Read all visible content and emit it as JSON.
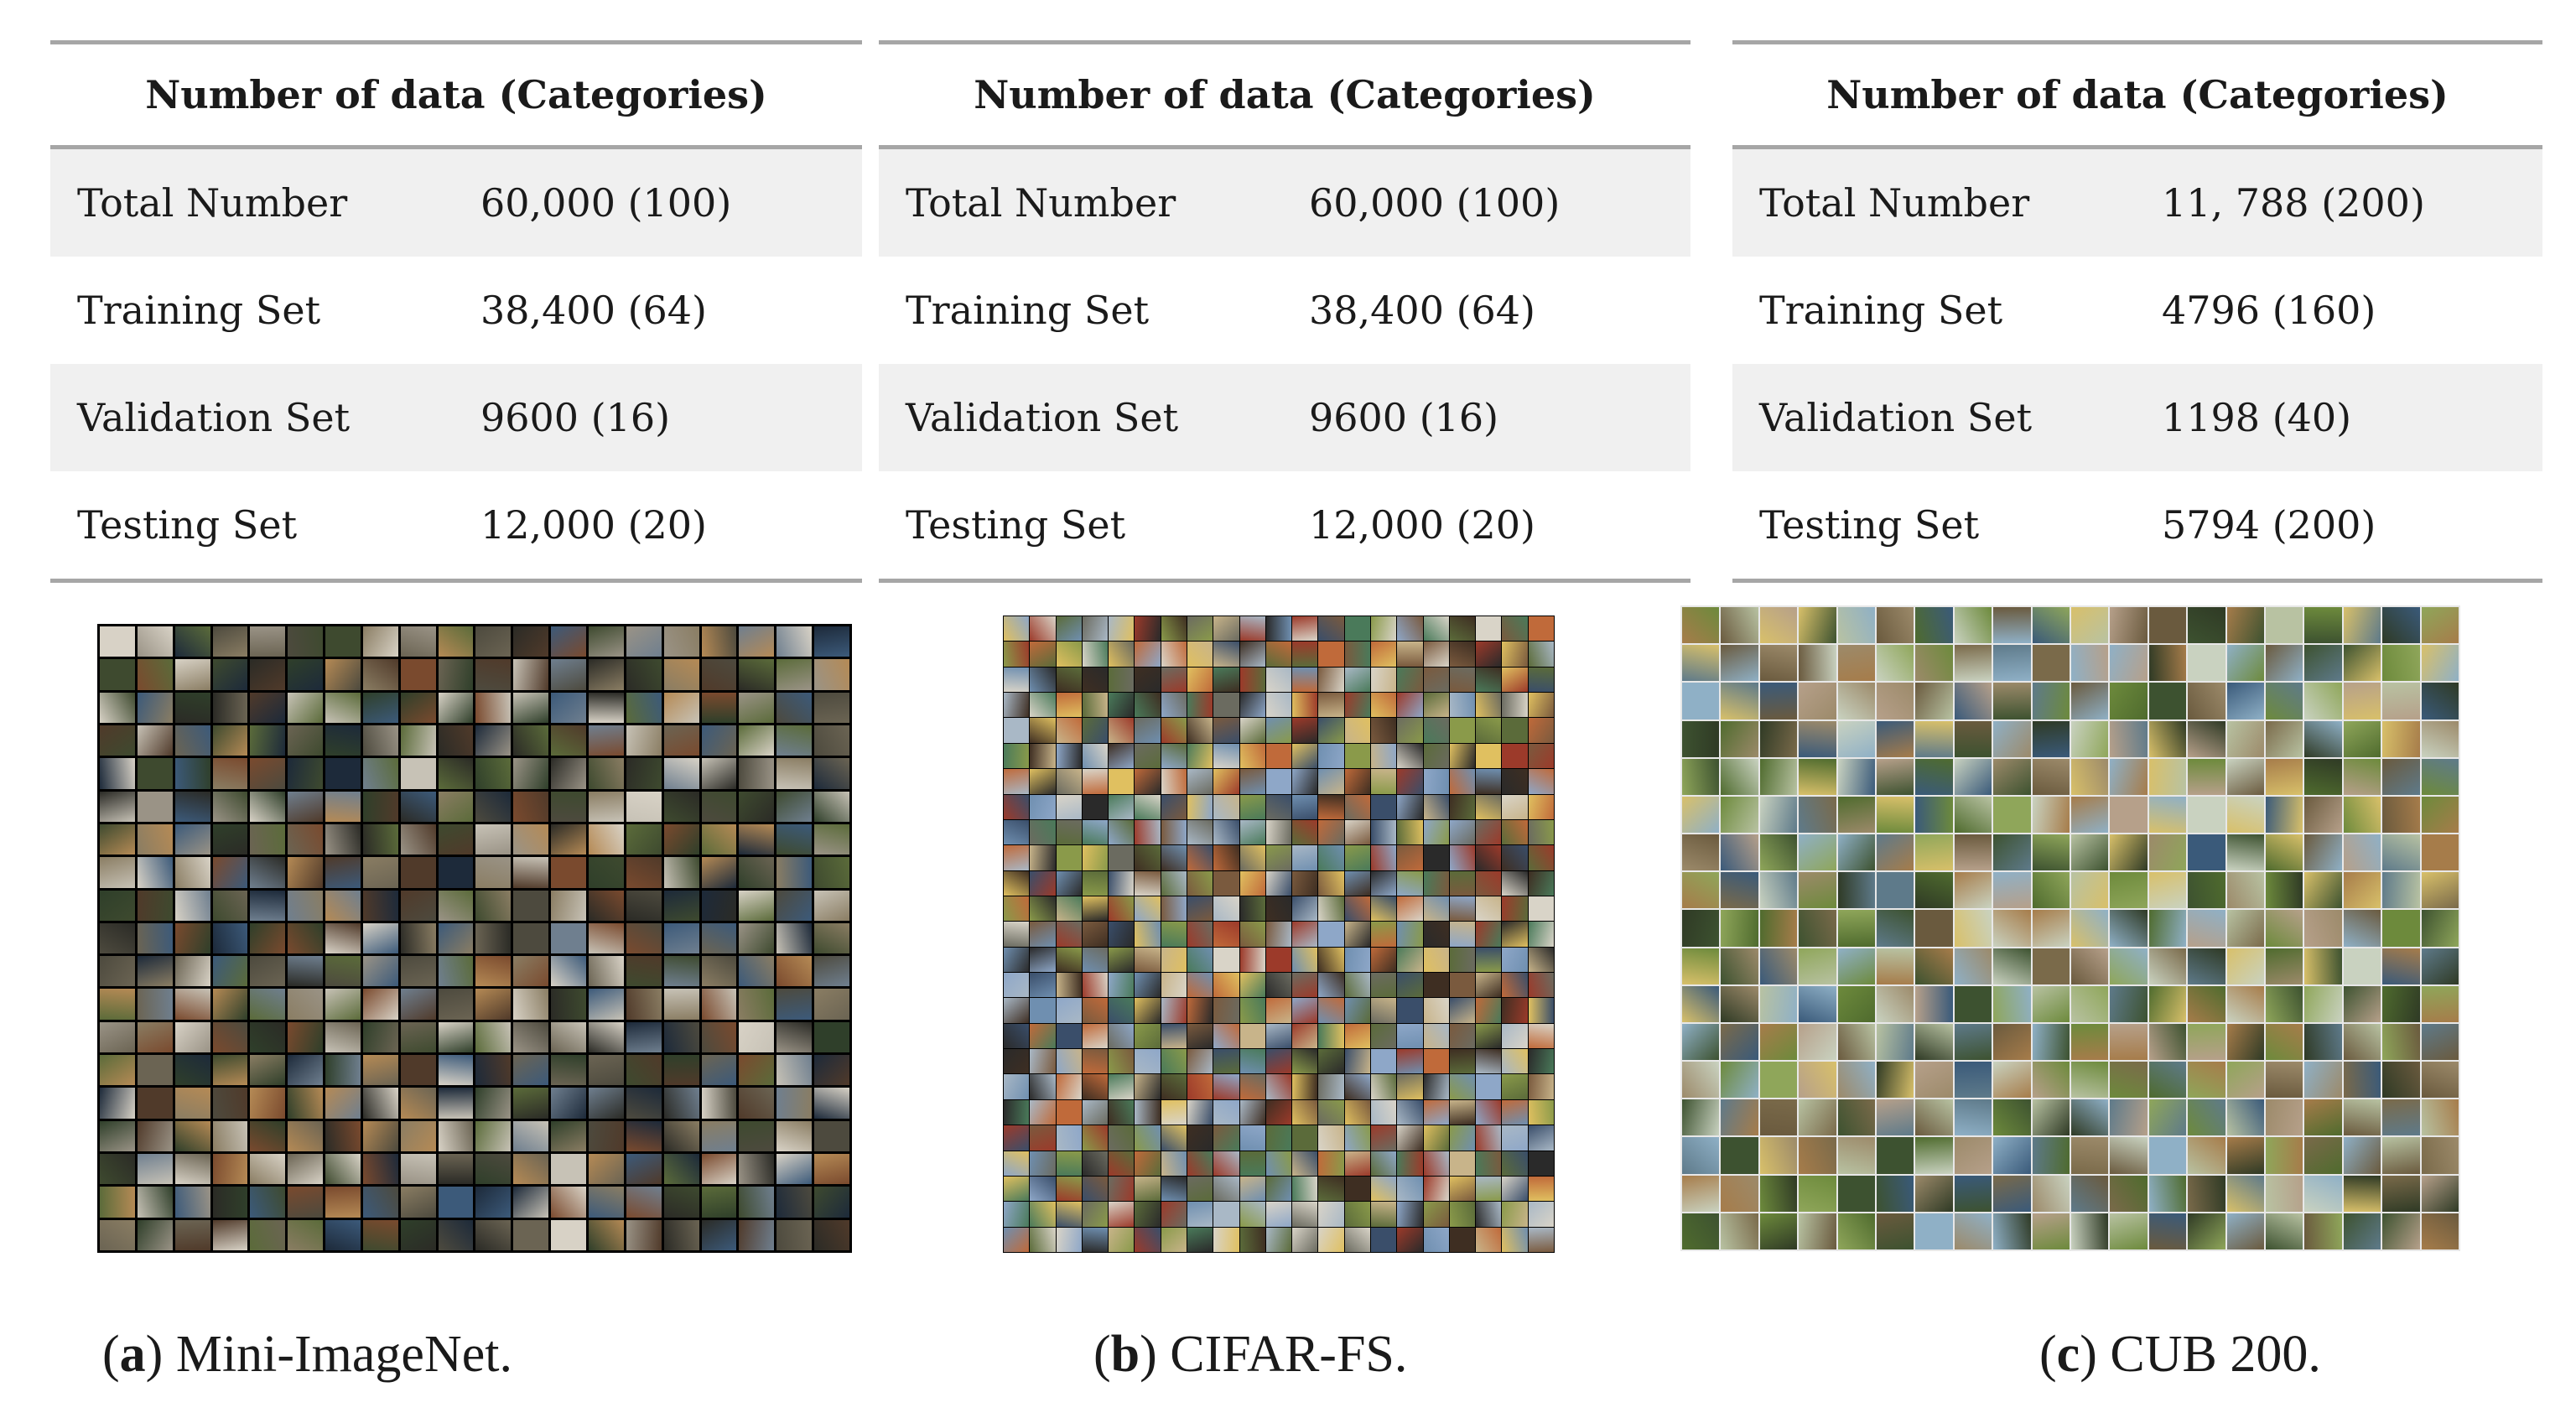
{
  "panels": [
    {
      "header": "Number of data (Categories)",
      "rows": [
        {
          "label": "Total Number",
          "value": "60,000 (100)"
        },
        {
          "label": "Training Set",
          "value": "38,400 (64)"
        },
        {
          "label": "Validation Set",
          "value": "9600 (16)"
        },
        {
          "label": "Testing Set",
          "value": "12,000 (20)"
        }
      ],
      "caption_letter": "a",
      "caption_text": " Mini-ImageNet."
    },
    {
      "header": "Number of data (Categories)",
      "rows": [
        {
          "label": "Total Number",
          "value": "60,000 (100)"
        },
        {
          "label": "Training Set",
          "value": "38,400 (64)"
        },
        {
          "label": "Validation Set",
          "value": "9600 (16)"
        },
        {
          "label": "Testing Set",
          "value": "12,000 (20)"
        }
      ],
      "caption_letter": "b",
      "caption_text": " CIFAR-FS."
    },
    {
      "header": "Number of data (Categories)",
      "rows": [
        {
          "label": "Total Number",
          "value": "11, 788 (200)"
        },
        {
          "label": "Training Set",
          "value": "4796 (160)"
        },
        {
          "label": "Validation Set",
          "value": "1198 (40)"
        },
        {
          "label": "Testing Set",
          "value": "5794 (200)"
        }
      ],
      "caption_letter": "c",
      "caption_text": " CUB 200."
    }
  ]
}
